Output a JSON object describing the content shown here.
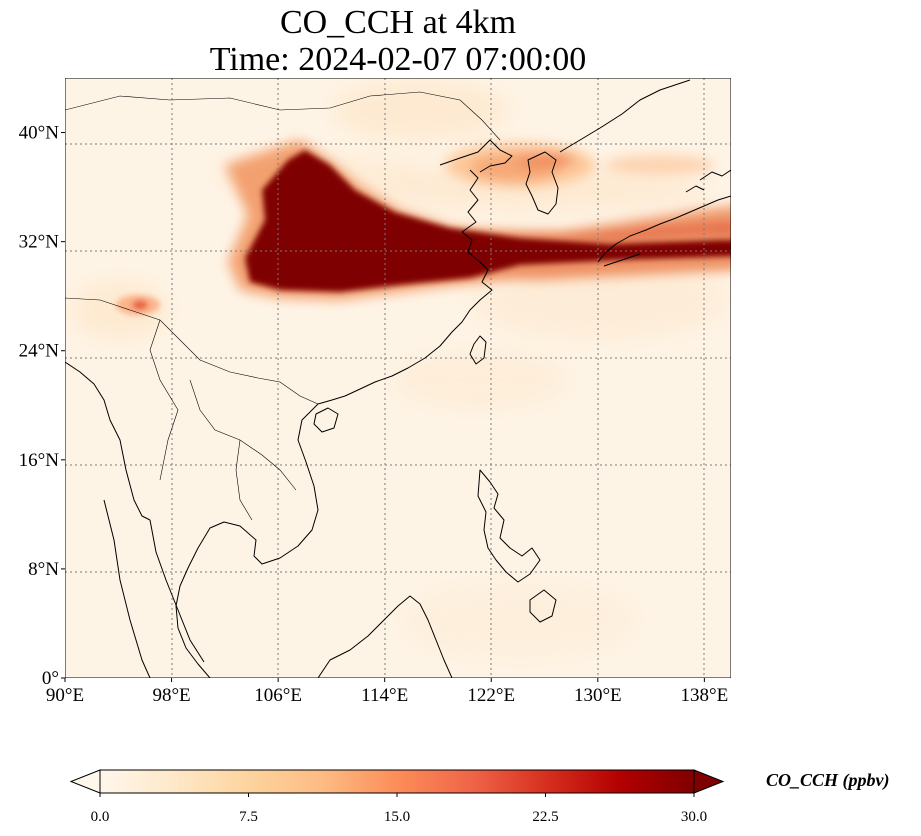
{
  "title": {
    "line1": "CO_CCH at 4km",
    "line2": "Time: 2024-02-07 07:00:00"
  },
  "map": {
    "lon_range": [
      90,
      140
    ],
    "lat_range": [
      0,
      44
    ],
    "lon_ticks": [
      {
        "value": 90,
        "label": "90°E"
      },
      {
        "value": 98,
        "label": "98°E"
      },
      {
        "value": 106,
        "label": "106°E"
      },
      {
        "value": 114,
        "label": "114°E"
      },
      {
        "value": 122,
        "label": "122°E"
      },
      {
        "value": 130,
        "label": "130°E"
      },
      {
        "value": 138,
        "label": "138°E"
      }
    ],
    "lat_ticks": [
      {
        "value": 0,
        "label": "0°"
      },
      {
        "value": 8,
        "label": "8°N"
      },
      {
        "value": 16,
        "label": "16°N"
      },
      {
        "value": 24,
        "label": "24°N"
      },
      {
        "value": 32,
        "label": "32°N"
      },
      {
        "value": 40,
        "label": "40°N"
      }
    ],
    "gridlines": true
  },
  "colorbar": {
    "label": "CO_CCH (ppbv)",
    "colormap": "OrRd",
    "vmin": 0.0,
    "vmax": 30.0,
    "extend": "both",
    "ticks": [
      "0.0",
      "7.5",
      "15.0",
      "22.5",
      "30.0"
    ],
    "stops": [
      "#fff7ec",
      "#fee8c8",
      "#fdd49e",
      "#fdbb84",
      "#fc8d59",
      "#ef6548",
      "#d7301f",
      "#b30000",
      "#7f0000"
    ]
  }
}
